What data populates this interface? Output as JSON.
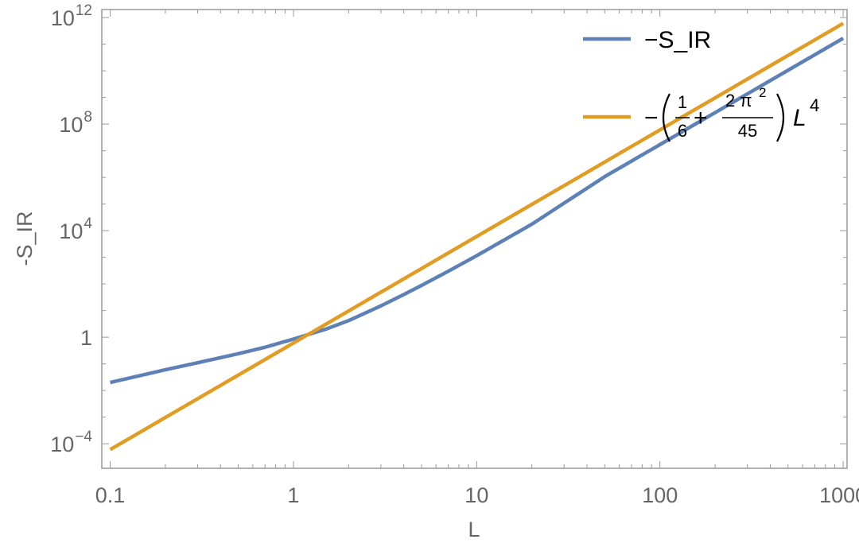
{
  "chart_data": {
    "type": "line",
    "xlabel": "L",
    "ylabel": "-S_IR",
    "xscale": "log",
    "yscale": "log",
    "xlim": [
      0.09,
      1050
    ],
    "ylim": [
      1.2e-05,
      2000000000000.0
    ],
    "frame": true,
    "grid": false,
    "legend_position": "top-right",
    "x_ticks": [
      {
        "value": 0.1,
        "label": "0.1"
      },
      {
        "value": 1,
        "label": "1"
      },
      {
        "value": 10,
        "label": "10"
      },
      {
        "value": 100,
        "label": "100"
      },
      {
        "value": 1000,
        "label": "1000"
      }
    ],
    "y_ticks": [
      {
        "value": 0.0001,
        "base": "10",
        "exp": "−4"
      },
      {
        "value": 1,
        "base": "1",
        "exp": ""
      },
      {
        "value": 10000,
        "base": "10",
        "exp": "4"
      },
      {
        "value": 100000000,
        "base": "10",
        "exp": "8"
      },
      {
        "value": 1000000000000,
        "base": "10",
        "exp": "12"
      }
    ],
    "series": [
      {
        "name": "−S_IR",
        "color": "#5e81b5",
        "x": [
          0.1,
          0.2,
          0.3,
          0.5,
          0.7,
          1,
          1.5,
          2,
          3,
          4,
          5,
          7,
          10,
          20,
          50,
          100,
          1000
        ],
        "y": [
          0.02,
          0.06,
          0.11,
          0.24,
          0.42,
          0.85,
          2.0,
          4.2,
          15,
          40,
          88,
          300,
          1150,
          17500,
          1070000,
          17000000,
          167000000000
        ]
      },
      {
        "name": "−(1/6 + 2π²/45) L⁴",
        "color": "#e19c24",
        "x": [
          0.1,
          1000
        ],
        "y": [
          6.05e-05,
          605000000000
        ]
      }
    ],
    "legend": {
      "entry1": "−S_IR",
      "minus": "−",
      "frac1_num": "1",
      "frac1_den": "6",
      "plus": "+",
      "frac2_num_a": "2 π",
      "frac2_num_exp": "2",
      "frac2_den": "45",
      "var": "L",
      "var_exp": "4"
    }
  }
}
